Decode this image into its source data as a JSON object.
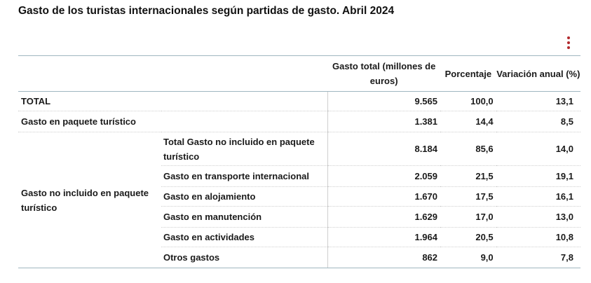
{
  "title": "Gasto de los turistas internacionales según partidas de gasto. Abril 2024",
  "menu_icon": "vertical-dots-icon",
  "accent_color": "#b22a2e",
  "table": {
    "headers": {
      "col1": "",
      "col2": "",
      "col3": "Gasto total (millones de euros)",
      "col4": "Porcentaje",
      "col5": "Variación anual (%)"
    },
    "rows": [
      {
        "label": "TOTAL",
        "sublabel": "",
        "gasto": "9.565",
        "pct": "100,0",
        "var": "13,1"
      },
      {
        "label": "Gasto en paquete turístico",
        "sublabel": "",
        "gasto": "1.381",
        "pct": "14,4",
        "var": "8,5"
      }
    ],
    "group": {
      "label": "Gasto no incluido en paquete turístico",
      "rows": [
        {
          "sublabel": "Total Gasto no incluido en paquete turístico",
          "gasto": "8.184",
          "pct": "85,6",
          "var": "14,0"
        },
        {
          "sublabel": "Gasto en transporte internacional",
          "gasto": "2.059",
          "pct": "21,5",
          "var": "19,1"
        },
        {
          "sublabel": "Gasto en alojamiento",
          "gasto": "1.670",
          "pct": "17,5",
          "var": "16,1"
        },
        {
          "sublabel": "Gasto en manutención",
          "gasto": "1.629",
          "pct": "17,0",
          "var": "13,0"
        },
        {
          "sublabel": "Gasto en actividades",
          "gasto": "1.964",
          "pct": "20,5",
          "var": "10,8"
        },
        {
          "sublabel": "Otros gastos",
          "gasto": "862",
          "pct": "9,0",
          "var": "7,8"
        }
      ]
    }
  }
}
